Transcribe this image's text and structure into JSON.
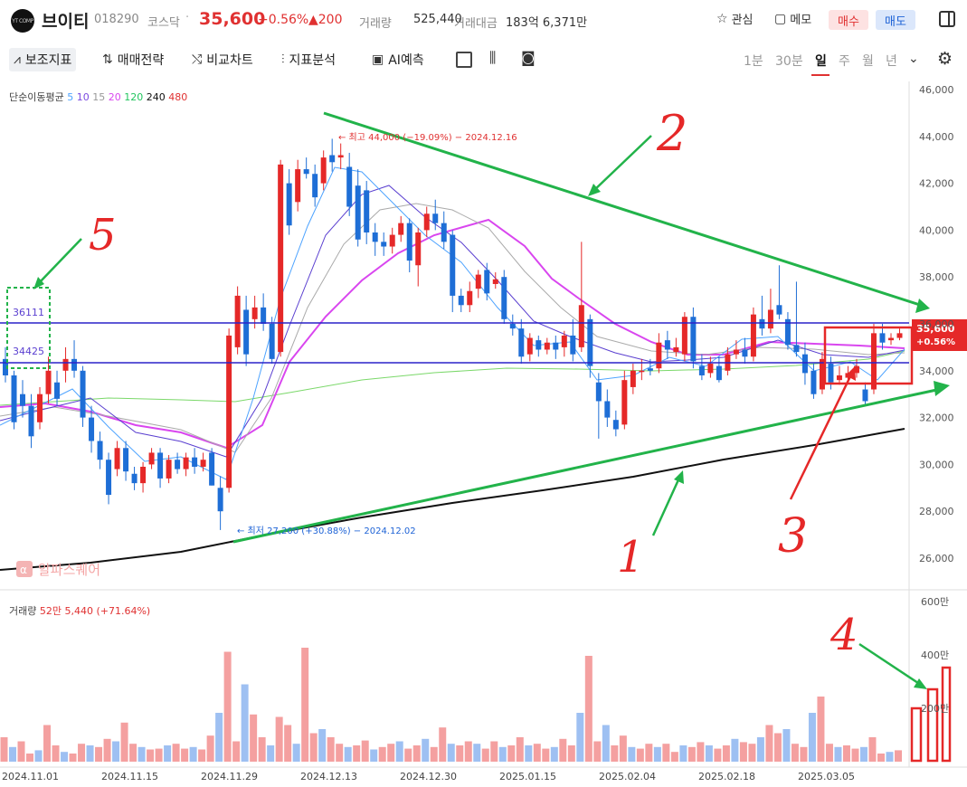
{
  "header": {
    "logo": "YT COMP",
    "stock_name": "브이티",
    "code": "018290",
    "market": "코스닥",
    "separator": "·",
    "price": "35,600",
    "change_pct": "+0.56%",
    "change_amt": "▲200",
    "volume_label": "거래량",
    "volume_value": "525,440",
    "amount_label": "거래대금",
    "amount_value": "183억 6,371만",
    "watch_label": "관심",
    "memo_label": "메모",
    "buy_label": "매수",
    "sell_label": "매도"
  },
  "toolbar": {
    "items": [
      "보조지표",
      "매매전략",
      "비교차트",
      "지표분석",
      "AI예측"
    ],
    "periods": [
      "1분",
      "30분",
      "일",
      "주",
      "월",
      "년"
    ],
    "active_period": "일"
  },
  "ma_legend": {
    "label": "단순이동평균",
    "periods": [
      {
        "p": "5",
        "color": "#4da3ff"
      },
      {
        "p": "10",
        "color": "#7b4ae0"
      },
      {
        "p": "15",
        "color": "#999999"
      },
      {
        "p": "20",
        "color": "#d946ef"
      },
      {
        "p": "120",
        "color": "#22c55e"
      },
      {
        "p": "240",
        "color": "#111111"
      },
      {
        "p": "480",
        "color": "#e03131"
      }
    ]
  },
  "volume_legend": {
    "label": "거래량",
    "value": "52만 5,440 (+71.64%)"
  },
  "price_axis": [
    "46,000",
    "44,000",
    "42,000",
    "40,000",
    "38,000",
    "36,000",
    "34,000",
    "32,000",
    "30,000",
    "28,000",
    "26,000"
  ],
  "volume_axis": [
    "600만",
    "400만",
    "200만"
  ],
  "date_axis": [
    "2024.11.01",
    "2024.11.15",
    "2024.11.29",
    "2024.12.13",
    "2024.12.30",
    "2025.01.15",
    "2025.02.04",
    "2025.02.18",
    "2025.03.05"
  ],
  "annotations": {
    "high": "← 최고 44,000 (−19.09%) − 2024.12.16",
    "low": "← 최저 27,200 (+30.88%) − 2024.12.02",
    "level_upper": "36111",
    "level_lower": "34425",
    "current_price": "35,600",
    "current_pct": "+0.56%",
    "watermark": "알파스퀘어",
    "watermark_glyph": "α",
    "marks": [
      "1",
      "2",
      "3",
      "4",
      "5"
    ]
  },
  "colors": {
    "up": "#e03131",
    "down": "#1e63d6",
    "trend": "#22b34a",
    "level": "#2a22c8"
  },
  "chart_data": {
    "type": "candlestick",
    "x": [
      "2024.11.01",
      "2024.11.15",
      "2024.11.29",
      "2024.12.13",
      "2024.12.30",
      "2025.01.15",
      "2025.02.04",
      "2025.02.18",
      "2025.03.05"
    ],
    "series": [
      {
        "values": [
          33800,
          30000,
          33500,
          42800,
          40500,
          35500,
          33000,
          35200,
          34800
        ]
      }
    ]
  }
}
